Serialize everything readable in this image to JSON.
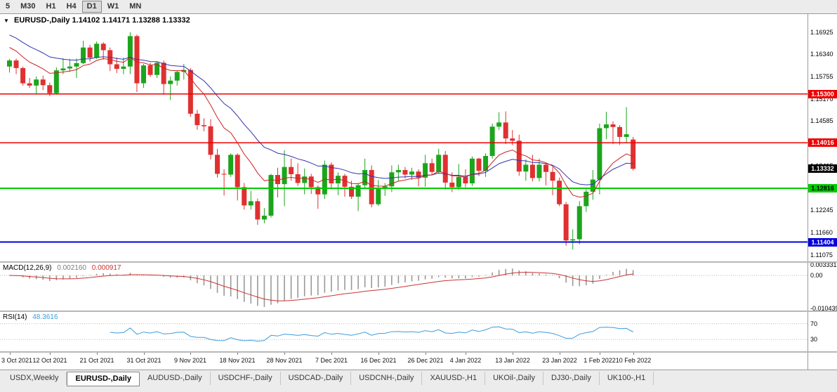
{
  "toolbar": {
    "timeframes": [
      {
        "label": "5",
        "active": false
      },
      {
        "label": "M30",
        "active": false
      },
      {
        "label": "H1",
        "active": false
      },
      {
        "label": "H4",
        "active": false
      },
      {
        "label": "D1",
        "active": true
      },
      {
        "label": "W1",
        "active": false
      },
      {
        "label": "MN",
        "active": false
      }
    ]
  },
  "main_chart": {
    "one_click_icon": "▼",
    "title": "EURUSD-,Daily",
    "quote": "1.14102 1.14171 1.13288 1.13332",
    "price_scale": [
      "1.16925",
      "1.16340",
      "1.15755",
      "1.15170",
      "1.14585",
      "1.14000",
      "1.13415",
      "1.12830",
      "1.12245",
      "1.11660",
      "1.11075"
    ],
    "hlines": [
      {
        "price": 1.153,
        "label": "1.15300",
        "color": "#ee0000",
        "text_color": "#ffffff",
        "width": 1.4
      },
      {
        "price": 1.14016,
        "label": "1.14016",
        "color": "#ee0000",
        "text_color": "#ffffff",
        "width": 1.4
      },
      {
        "price": 1.12816,
        "label": "1.12816",
        "color": "#00cc00",
        "text_color": "#000000",
        "width": 2
      },
      {
        "price": 1.11404,
        "label": "1.11404",
        "color": "#0000dd",
        "text_color": "#ffffff",
        "width": 2
      }
    ],
    "current_price": {
      "price": 1.13332,
      "label": "1.13332",
      "color": "#000000",
      "text_color": "#ffffff"
    }
  },
  "chart_data": {
    "type": "candlestick",
    "symbol": "EURUSD-",
    "timeframe": "Daily",
    "up_color": "#1ca51c",
    "down_color": "#e03030",
    "price_range": {
      "min": 1.109,
      "max": 1.174
    },
    "ohlc": [
      [
        1.1602,
        1.1622,
        1.1586,
        1.1618
      ],
      [
        1.1618,
        1.1623,
        1.1582,
        1.1598
      ],
      [
        1.1598,
        1.1602,
        1.1552,
        1.1558
      ],
      [
        1.1558,
        1.1572,
        1.1546,
        1.1552
      ],
      [
        1.1552,
        1.1576,
        1.1529,
        1.1568
      ],
      [
        1.1568,
        1.1578,
        1.154,
        1.1553
      ],
      [
        1.1553,
        1.156,
        1.1524,
        1.1532
      ],
      [
        1.1532,
        1.16,
        1.1528,
        1.1592
      ],
      [
        1.1592,
        1.1624,
        1.1582,
        1.1597
      ],
      [
        1.1597,
        1.1622,
        1.1588,
        1.1602
      ],
      [
        1.1602,
        1.1623,
        1.1572,
        1.1611
      ],
      [
        1.1611,
        1.167,
        1.1608,
        1.1652
      ],
      [
        1.1652,
        1.1659,
        1.1615,
        1.1625
      ],
      [
        1.1625,
        1.1668,
        1.1622,
        1.1662
      ],
      [
        1.1662,
        1.1666,
        1.162,
        1.1645
      ],
      [
        1.1645,
        1.1652,
        1.159,
        1.1608
      ],
      [
        1.1608,
        1.1626,
        1.1585,
        1.1596
      ],
      [
        1.1596,
        1.1626,
        1.1582,
        1.1602
      ],
      [
        1.1602,
        1.1692,
        1.1582,
        1.1682
      ],
      [
        1.1682,
        1.1686,
        1.1535,
        1.1558
      ],
      [
        1.1558,
        1.1609,
        1.1546,
        1.1605
      ],
      [
        1.1605,
        1.1612,
        1.1575,
        1.158
      ],
      [
        1.158,
        1.1616,
        1.1572,
        1.1612
      ],
      [
        1.1612,
        1.1618,
        1.1528,
        1.1556
      ],
      [
        1.1556,
        1.1576,
        1.1514,
        1.1565
      ],
      [
        1.1565,
        1.1592,
        1.1552,
        1.1588
      ],
      [
        1.1588,
        1.1609,
        1.1568,
        1.1593
      ],
      [
        1.1593,
        1.1598,
        1.147,
        1.1478
      ],
      [
        1.1478,
        1.1488,
        1.1436,
        1.1448
      ],
      [
        1.1448,
        1.1466,
        1.1432,
        1.1445
      ],
      [
        1.1445,
        1.1464,
        1.1358,
        1.137
      ],
      [
        1.137,
        1.1386,
        1.131,
        1.132
      ],
      [
        1.132,
        1.1332,
        1.1263,
        1.1318
      ],
      [
        1.1318,
        1.1374,
        1.1312,
        1.137
      ],
      [
        1.137,
        1.1374,
        1.125,
        1.1285
      ],
      [
        1.1285,
        1.1296,
        1.1226,
        1.1237
      ],
      [
        1.1237,
        1.1275,
        1.1226,
        1.1248
      ],
      [
        1.1248,
        1.1255,
        1.1186,
        1.12
      ],
      [
        1.12,
        1.123,
        1.119,
        1.121
      ],
      [
        1.121,
        1.132,
        1.1205,
        1.1317
      ],
      [
        1.1317,
        1.1336,
        1.1258,
        1.1293
      ],
      [
        1.1293,
        1.1382,
        1.1235,
        1.1338
      ],
      [
        1.1338,
        1.136,
        1.1302,
        1.1319
      ],
      [
        1.1319,
        1.1348,
        1.1288,
        1.1296
      ],
      [
        1.1296,
        1.1334,
        1.1266,
        1.1313
      ],
      [
        1.1313,
        1.132,
        1.1267,
        1.1285
      ],
      [
        1.1285,
        1.129,
        1.1228,
        1.1266
      ],
      [
        1.1266,
        1.1355,
        1.1254,
        1.1344
      ],
      [
        1.1344,
        1.135,
        1.128,
        1.1295
      ],
      [
        1.1295,
        1.1324,
        1.1264,
        1.1315
      ],
      [
        1.1315,
        1.132,
        1.126,
        1.1286
      ],
      [
        1.1286,
        1.1302,
        1.1254,
        1.126
      ],
      [
        1.126,
        1.1296,
        1.1222,
        1.129
      ],
      [
        1.129,
        1.136,
        1.128,
        1.133
      ],
      [
        1.133,
        1.1342,
        1.1232,
        1.124
      ],
      [
        1.124,
        1.1304,
        1.1236,
        1.128
      ],
      [
        1.128,
        1.1296,
        1.1262,
        1.1287
      ],
      [
        1.1287,
        1.1342,
        1.1272,
        1.1324
      ],
      [
        1.1324,
        1.1344,
        1.13,
        1.133
      ],
      [
        1.133,
        1.1338,
        1.1308,
        1.1318
      ],
      [
        1.1318,
        1.1336,
        1.1304,
        1.1326
      ],
      [
        1.1326,
        1.1332,
        1.1287,
        1.131
      ],
      [
        1.131,
        1.137,
        1.1286,
        1.1348
      ],
      [
        1.1348,
        1.136,
        1.1316,
        1.1325
      ],
      [
        1.1325,
        1.1386,
        1.132,
        1.137
      ],
      [
        1.137,
        1.138,
        1.1279,
        1.1297
      ],
      [
        1.1297,
        1.1324,
        1.1272,
        1.1285
      ],
      [
        1.1285,
        1.1346,
        1.1278,
        1.1312
      ],
      [
        1.1312,
        1.1332,
        1.1285,
        1.1295
      ],
      [
        1.1295,
        1.1366,
        1.1288,
        1.136
      ],
      [
        1.136,
        1.1362,
        1.1314,
        1.1328
      ],
      [
        1.1328,
        1.1374,
        1.1312,
        1.1367
      ],
      [
        1.1367,
        1.1452,
        1.136,
        1.1444
      ],
      [
        1.1444,
        1.1482,
        1.1435,
        1.1455
      ],
      [
        1.1455,
        1.1484,
        1.1398,
        1.1413
      ],
      [
        1.1413,
        1.1435,
        1.1395,
        1.1407
      ],
      [
        1.1407,
        1.1423,
        1.1315,
        1.1326
      ],
      [
        1.1326,
        1.1358,
        1.1302,
        1.1344
      ],
      [
        1.1344,
        1.137,
        1.13,
        1.1309
      ],
      [
        1.1309,
        1.136,
        1.13,
        1.1344
      ],
      [
        1.1344,
        1.1348,
        1.129,
        1.1325
      ],
      [
        1.1325,
        1.1338,
        1.1264,
        1.1302
      ],
      [
        1.1302,
        1.131,
        1.1235,
        1.124
      ],
      [
        1.124,
        1.1246,
        1.1131,
        1.1145
      ],
      [
        1.1145,
        1.1174,
        1.1121,
        1.1148
      ],
      [
        1.1148,
        1.1248,
        1.1135,
        1.1235
      ],
      [
        1.1235,
        1.128,
        1.122,
        1.1273
      ],
      [
        1.1273,
        1.133,
        1.1252,
        1.1305
      ],
      [
        1.1305,
        1.1452,
        1.1266,
        1.144
      ],
      [
        1.144,
        1.1483,
        1.1411,
        1.145
      ],
      [
        1.145,
        1.1458,
        1.1398,
        1.1443
      ],
      [
        1.1443,
        1.1448,
        1.1396,
        1.1417
      ],
      [
        1.1417,
        1.1495,
        1.1402,
        1.1424
      ],
      [
        1.14102,
        1.14171,
        1.13288,
        1.13332
      ]
    ],
    "date_labels": [
      {
        "i": 0,
        "label": "3 Oct 2021"
      },
      {
        "i": 6,
        "label": "12 Oct 2021"
      },
      {
        "i": 13,
        "label": "21 Oct 2021"
      },
      {
        "i": 20,
        "label": "31 Oct 2021"
      },
      {
        "i": 27,
        "label": "9 Nov 2021"
      },
      {
        "i": 34,
        "label": "18 Nov 2021"
      },
      {
        "i": 41,
        "label": "28 Nov 2021"
      },
      {
        "i": 48,
        "label": "7 Dec 2021"
      },
      {
        "i": 55,
        "label": "16 Dec 2021"
      },
      {
        "i": 62,
        "label": "26 Dec 2021"
      },
      {
        "i": 68,
        "label": "4 Jan 2022"
      },
      {
        "i": 75,
        "label": "13 Jan 2022"
      },
      {
        "i": 82,
        "label": "23 Jan 2022"
      },
      {
        "i": 88,
        "label": "1 Feb 2022"
      },
      {
        "i": 93,
        "label": "10 Feb 2022"
      }
    ],
    "ma_fast": {
      "period": 10,
      "color": "#cc2222",
      "seed": 1.166
    },
    "ma_slow": {
      "period": 20,
      "color": "#3333b2",
      "seed": 1.1692
    }
  },
  "macd_panel": {
    "label": "MACD(12,26,9)",
    "value_main": "0.002160",
    "value_signal": "0.000917",
    "fast": 12,
    "slow": 26,
    "signal": 9,
    "axis": [
      {
        "value": 0.003331,
        "label": "0.003331"
      },
      {
        "value": 0,
        "label": "0.00"
      },
      {
        "value": -0.010439,
        "label": "-0.010439"
      }
    ],
    "range": {
      "min": -0.011,
      "max": 0.004
    },
    "hist_color": "#999999",
    "signal_color": "#cc3333"
  },
  "rsi_panel": {
    "label": "RSI(14)",
    "value": "48.3616",
    "period": 14,
    "color": "#3d9bda",
    "levels": [
      {
        "value": 70,
        "label": "70"
      },
      {
        "value": 30,
        "label": "30"
      }
    ],
    "range": {
      "min": 0,
      "max": 100
    }
  },
  "tab_bar": {
    "tabs": [
      {
        "label": "USDX,Weekly",
        "active": false
      },
      {
        "label": "EURUSD-,Daily",
        "active": true
      },
      {
        "label": "AUDUSD-,Daily",
        "active": false
      },
      {
        "label": "USDCHF-,Daily",
        "active": false
      },
      {
        "label": "USDCAD-,Daily",
        "active": false
      },
      {
        "label": "USDCNH-,Daily",
        "active": false
      },
      {
        "label": "XAUUSD-,H1",
        "active": false
      },
      {
        "label": "UKOil-,Daily",
        "active": false
      },
      {
        "label": "DJ30-,Daily",
        "active": false
      },
      {
        "label": "UK100-,H1",
        "active": false
      }
    ]
  }
}
